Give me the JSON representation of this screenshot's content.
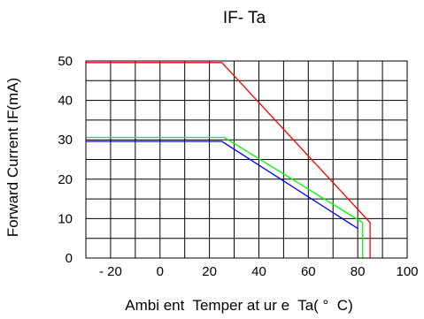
{
  "chart_data": {
    "type": "line",
    "title": "IF- Ta",
    "xlabel": "Ambi ent  Temper at ur e  Ta( °  C)",
    "ylabel": "Forward Current IF(mA)",
    "xlim": [
      -30,
      100
    ],
    "ylim": [
      0,
      50
    ],
    "x_ticks": [
      -20,
      0,
      20,
      40,
      60,
      80,
      100
    ],
    "x_tick_labels": [
      "- 20",
      "0",
      "20",
      "40",
      "60",
      "80",
      "100"
    ],
    "y_ticks": [
      0,
      10,
      20,
      30,
      40,
      50
    ],
    "y_tick_labels": [
      "0",
      "10",
      "20",
      "30",
      "40",
      "50"
    ],
    "grid": true,
    "series": [
      {
        "color": "#ff0000",
        "points": [
          [
            -30,
            49.6
          ],
          [
            25,
            49.6
          ],
          [
            85,
            9
          ],
          [
            85,
            0
          ]
        ]
      },
      {
        "color": "#00ff00",
        "points": [
          [
            -30,
            30.6
          ],
          [
            26,
            30.6
          ],
          [
            82,
            9
          ],
          [
            82,
            0
          ]
        ]
      },
      {
        "color": "#0000ff",
        "points": [
          [
            -30,
            29.6
          ],
          [
            25,
            29.6
          ],
          [
            80,
            7.5
          ]
        ]
      }
    ]
  }
}
